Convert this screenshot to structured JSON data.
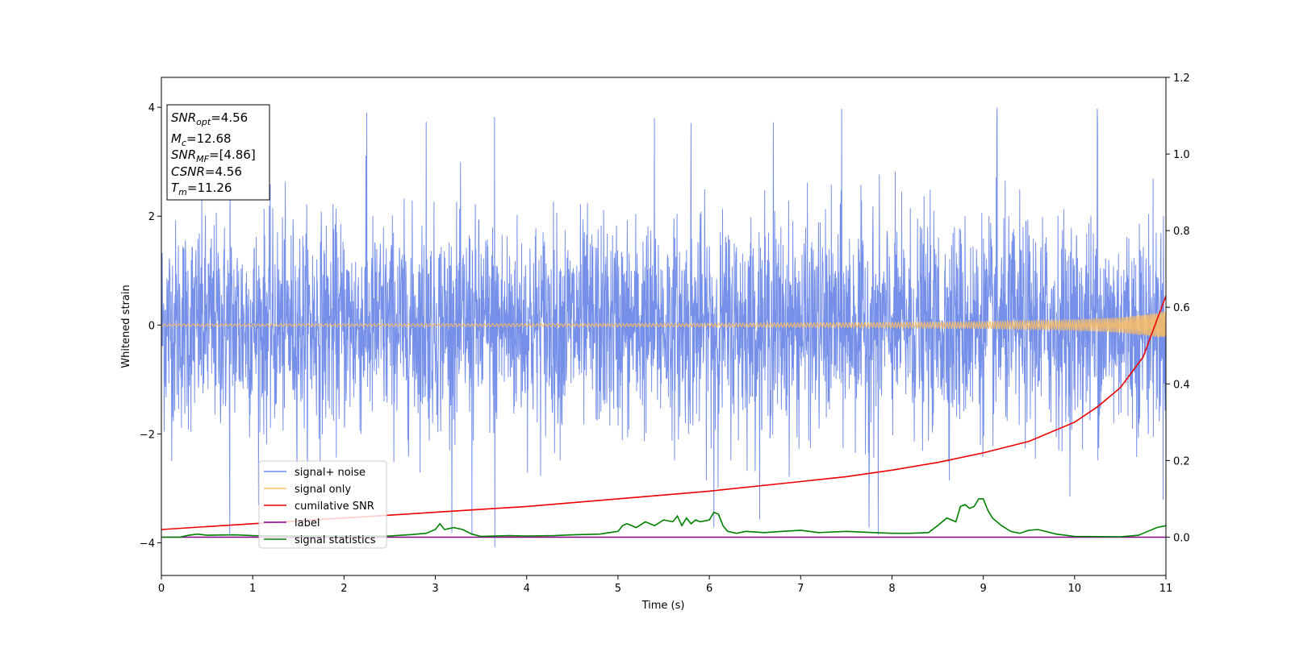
{
  "chart_data": {
    "type": "line",
    "xlabel": "Time (s)",
    "ylabel": "Whitened strain",
    "xlim": [
      0,
      11
    ],
    "ylim": [
      -4.6,
      4.55
    ],
    "y2lim": [
      -0.1,
      1.2
    ],
    "x_ticks": [
      0,
      1,
      2,
      3,
      4,
      5,
      6,
      7,
      8,
      9,
      10,
      11
    ],
    "y_ticks": [
      -4,
      -2,
      0,
      2,
      4
    ],
    "y2_ticks": [
      "0.0",
      "0.2",
      "0.4",
      "0.6",
      "0.8",
      "1.0",
      "1.2"
    ],
    "grid": false,
    "legend_position": "lower left",
    "info_box": [
      {
        "base": "SNR",
        "sub": "opt",
        "value": "=4.56"
      },
      {
        "base": "M",
        "sub": "c",
        "value": "=12.68"
      },
      {
        "base": "SNR",
        "sub": "MF",
        "value": "=[4.86]"
      },
      {
        "base": "CSNR",
        "sub": "",
        "value": "=4.56"
      },
      {
        "base": "T",
        "sub": "m",
        "value": "=11.26"
      }
    ],
    "series": [
      {
        "name": "signal+ noise",
        "color": "#6f8ae8",
        "axis": "left",
        "kind": "noise",
        "description_values": {
          "std": 1.0,
          "max": 4.15,
          "min": -4.15,
          "peak_times": [
            0.75,
            2.25,
            2.9,
            3.4,
            3.65,
            5.4,
            5.8,
            6.05,
            6.7,
            7.45,
            7.75,
            7.85,
            9.15,
            10.25
          ]
        }
      },
      {
        "name": "signal only",
        "color": "#ffbf60",
        "axis": "left",
        "kind": "chirp",
        "amplitude_envelope": [
          [
            0,
            0.02
          ],
          [
            6,
            0.03
          ],
          [
            9,
            0.06
          ],
          [
            10,
            0.1
          ],
          [
            10.5,
            0.14
          ],
          [
            11,
            0.25
          ]
        ]
      },
      {
        "name": "cumilative SNR",
        "color": "#ee0000",
        "axis": "right",
        "x": [
          0,
          1,
          2,
          3,
          4,
          5,
          6,
          7,
          7.5,
          8,
          8.5,
          9,
          9.5,
          10,
          10.25,
          10.5,
          10.75,
          11
        ],
        "y": [
          0.02,
          0.035,
          0.05,
          0.065,
          0.08,
          0.1,
          0.12,
          0.145,
          0.158,
          0.175,
          0.195,
          0.22,
          0.25,
          0.3,
          0.34,
          0.39,
          0.47,
          0.63
        ]
      },
      {
        "name": "label",
        "color": "#800080",
        "axis": "right",
        "x": [
          0,
          11
        ],
        "y": [
          0.0,
          0.0
        ]
      },
      {
        "name": "signal statistics",
        "color": "#008000",
        "axis": "right",
        "x": [
          0,
          0.2,
          0.3,
          0.4,
          0.5,
          0.8,
          1.0,
          1.5,
          2.0,
          2.5,
          2.7,
          2.9,
          3.0,
          3.05,
          3.1,
          3.2,
          3.3,
          3.4,
          3.5,
          3.8,
          4.0,
          4.3,
          4.5,
          4.8,
          5.0,
          5.05,
          5.1,
          5.2,
          5.3,
          5.4,
          5.5,
          5.6,
          5.65,
          5.7,
          5.75,
          5.8,
          5.85,
          5.9,
          6.0,
          6.05,
          6.1,
          6.15,
          6.2,
          6.3,
          6.4,
          6.6,
          6.8,
          7.0,
          7.2,
          7.5,
          7.8,
          8.0,
          8.2,
          8.4,
          8.5,
          8.6,
          8.7,
          8.75,
          8.8,
          8.85,
          8.9,
          8.95,
          9.0,
          9.05,
          9.1,
          9.2,
          9.3,
          9.4,
          9.5,
          9.6,
          9.8,
          10.0,
          10.5,
          10.7,
          10.8,
          10.9,
          11.0
        ],
        "y": [
          0.0,
          0.0,
          0.005,
          0.008,
          0.005,
          0.006,
          0.004,
          0.003,
          0.003,
          0.003,
          0.006,
          0.01,
          0.02,
          0.035,
          0.02,
          0.025,
          0.02,
          0.008,
          0.002,
          0.004,
          0.003,
          0.004,
          0.006,
          0.008,
          0.015,
          0.03,
          0.035,
          0.025,
          0.04,
          0.03,
          0.045,
          0.04,
          0.055,
          0.03,
          0.05,
          0.035,
          0.045,
          0.04,
          0.045,
          0.065,
          0.06,
          0.03,
          0.015,
          0.01,
          0.015,
          0.012,
          0.015,
          0.018,
          0.012,
          0.015,
          0.012,
          0.01,
          0.01,
          0.012,
          0.03,
          0.05,
          0.04,
          0.08,
          0.085,
          0.075,
          0.08,
          0.1,
          0.1,
          0.07,
          0.05,
          0.03,
          0.015,
          0.01,
          0.018,
          0.02,
          0.008,
          0.002,
          0.001,
          0.005,
          0.015,
          0.025,
          0.03
        ]
      }
    ]
  }
}
